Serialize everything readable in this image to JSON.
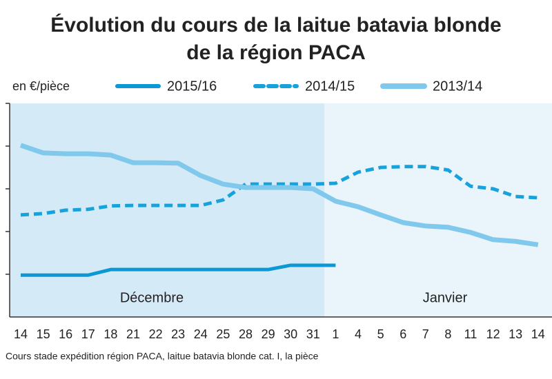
{
  "chart_data": {
    "type": "line",
    "title": [
      "Évolution du cours de la laitue batavia blonde",
      "de la région PACA"
    ],
    "y_label": "en €/pièce",
    "note": "Cours stade expédition région PACA, laitue batavia blonde cat. I, la pièce",
    "annotations": [
      "Décembre",
      "Janvier"
    ],
    "categories": [
      "14",
      "15",
      "16",
      "17",
      "18",
      "21",
      "22",
      "23",
      "24",
      "25",
      "28",
      "29",
      "30",
      "31",
      "1",
      "4",
      "5",
      "6",
      "7",
      "8",
      "11",
      "12",
      "13",
      "14"
    ],
    "ylim": [
      0,
      5
    ],
    "series": [
      {
        "name": "2015/16",
        "color": "#0b98d5",
        "dash": false,
        "values": [
          0.98,
          0.98,
          0.98,
          0.98,
          1.11,
          1.11,
          1.11,
          1.11,
          1.11,
          1.11,
          1.11,
          1.11,
          1.21,
          1.21,
          1.21,
          null,
          null,
          null,
          null,
          null,
          null,
          null,
          null,
          null
        ]
      },
      {
        "name": "2014/15",
        "color": "#17a2dc",
        "dash": true,
        "values": [
          2.39,
          2.42,
          2.5,
          2.52,
          2.6,
          2.61,
          2.61,
          2.61,
          2.61,
          2.74,
          3.11,
          3.11,
          3.11,
          3.11,
          3.13,
          3.39,
          3.5,
          3.52,
          3.52,
          3.44,
          3.06,
          3.0,
          2.82,
          2.79
        ]
      },
      {
        "name": "2013/14",
        "color": "#80c9ec",
        "dash": false,
        "values": [
          4.02,
          3.84,
          3.82,
          3.82,
          3.79,
          3.61,
          3.61,
          3.6,
          3.31,
          3.11,
          3.03,
          3.03,
          3.03,
          3.0,
          2.71,
          2.58,
          2.39,
          2.21,
          2.13,
          2.1,
          1.98,
          1.81,
          1.77,
          1.69
        ]
      }
    ]
  }
}
